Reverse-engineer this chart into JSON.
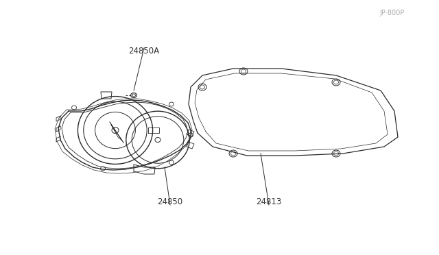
{
  "background_color": "#ffffff",
  "line_color": "#2a2a2a",
  "label_color": "#333333",
  "watermark": "JP·800P",
  "figsize": [
    6.4,
    3.72
  ],
  "dpi": 100
}
